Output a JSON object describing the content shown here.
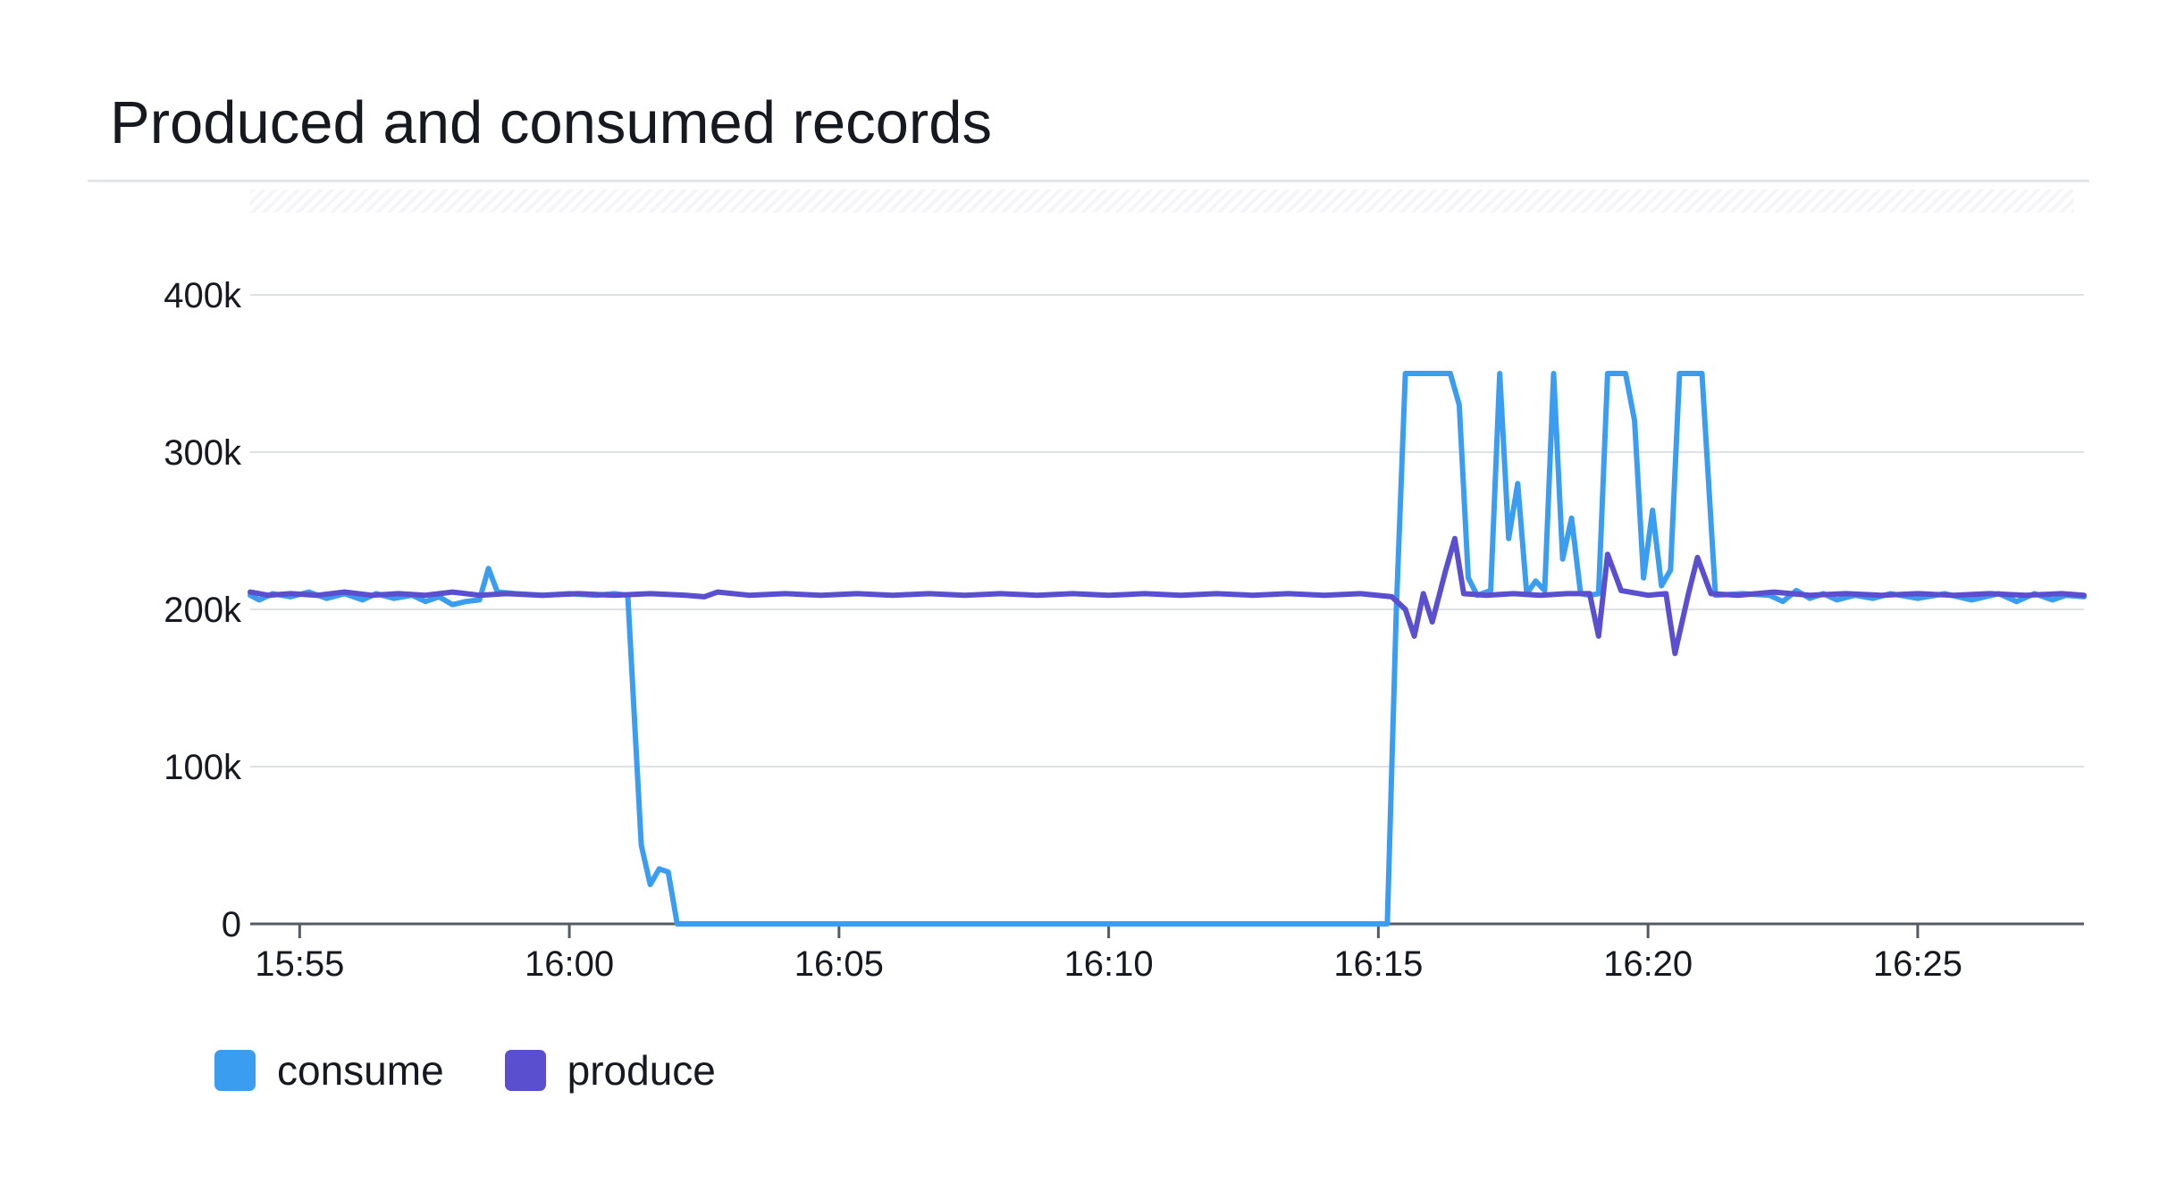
{
  "widget": {
    "title": "Produced and consumed records"
  },
  "chart_data": {
    "type": "line",
    "title": "Produced and consumed records",
    "xlabel": "",
    "ylabel": "",
    "x_range": [
      "15:54:05",
      "16:28:05"
    ],
    "ylim": [
      0,
      400000
    ],
    "grid": true,
    "legend_position": "bottom-left",
    "x_tick_labels": [
      "15:55",
      "16:00",
      "16:05",
      "16:10",
      "16:15",
      "16:20",
      "16:25"
    ],
    "y_tick_labels": [
      "0",
      "100k",
      "200k",
      "300k",
      "400k"
    ],
    "series": [
      {
        "name": "consume",
        "color": "#3a9df0",
        "points": [
          [
            "15:54:05",
            209000
          ],
          [
            "15:54:15",
            206000
          ],
          [
            "15:54:30",
            210000
          ],
          [
            "15:54:50",
            208000
          ],
          [
            "15:55:10",
            211000
          ],
          [
            "15:55:30",
            207000
          ],
          [
            "15:55:50",
            210000
          ],
          [
            "15:56:10",
            206000
          ],
          [
            "15:56:25",
            210000
          ],
          [
            "15:56:45",
            207000
          ],
          [
            "15:57:05",
            209000
          ],
          [
            "15:57:20",
            205000
          ],
          [
            "15:57:35",
            208000
          ],
          [
            "15:57:50",
            203000
          ],
          [
            "15:58:05",
            205000
          ],
          [
            "15:58:20",
            206000
          ],
          [
            "15:58:30",
            226000
          ],
          [
            "15:58:40",
            211000
          ],
          [
            "15:59:00",
            210000
          ],
          [
            "15:59:30",
            209000
          ],
          [
            "16:00:00",
            210000
          ],
          [
            "16:00:30",
            209000
          ],
          [
            "16:00:50",
            210000
          ],
          [
            "16:01:05",
            209000
          ],
          [
            "16:01:20",
            50000
          ],
          [
            "16:01:30",
            25000
          ],
          [
            "16:01:40",
            35000
          ],
          [
            "16:01:50",
            33000
          ],
          [
            "16:02:00",
            0
          ],
          [
            "16:15:10",
            0
          ],
          [
            "16:15:20",
            200000
          ],
          [
            "16:15:30",
            350000
          ],
          [
            "16:16:20",
            350000
          ],
          [
            "16:16:30",
            330000
          ],
          [
            "16:16:40",
            220000
          ],
          [
            "16:16:50",
            209000
          ],
          [
            "16:17:05",
            212000
          ],
          [
            "16:17:15",
            350000
          ],
          [
            "16:17:25",
            245000
          ],
          [
            "16:17:35",
            280000
          ],
          [
            "16:17:45",
            210000
          ],
          [
            "16:17:55",
            218000
          ],
          [
            "16:18:05",
            212000
          ],
          [
            "16:18:15",
            350000
          ],
          [
            "16:18:25",
            232000
          ],
          [
            "16:18:35",
            258000
          ],
          [
            "16:18:45",
            210000
          ],
          [
            "16:18:55",
            209000
          ],
          [
            "16:19:05",
            210000
          ],
          [
            "16:19:15",
            350000
          ],
          [
            "16:19:35",
            350000
          ],
          [
            "16:19:45",
            320000
          ],
          [
            "16:19:55",
            220000
          ],
          [
            "16:20:05",
            263000
          ],
          [
            "16:20:15",
            215000
          ],
          [
            "16:20:25",
            225000
          ],
          [
            "16:20:35",
            350000
          ],
          [
            "16:21:00",
            350000
          ],
          [
            "16:21:15",
            209000
          ],
          [
            "16:21:45",
            210000
          ],
          [
            "16:22:15",
            209000
          ],
          [
            "16:22:30",
            205000
          ],
          [
            "16:22:45",
            212000
          ],
          [
            "16:23:00",
            207000
          ],
          [
            "16:23:15",
            210000
          ],
          [
            "16:23:30",
            206000
          ],
          [
            "16:23:50",
            209000
          ],
          [
            "16:24:10",
            207000
          ],
          [
            "16:24:30",
            210000
          ],
          [
            "16:25:00",
            207000
          ],
          [
            "16:25:30",
            210000
          ],
          [
            "16:26:00",
            206000
          ],
          [
            "16:26:30",
            210000
          ],
          [
            "16:26:50",
            205000
          ],
          [
            "16:27:10",
            210000
          ],
          [
            "16:27:30",
            206000
          ],
          [
            "16:27:45",
            209000
          ],
          [
            "16:28:05",
            208000
          ]
        ]
      },
      {
        "name": "produce",
        "color": "#5a4fcf",
        "points": [
          [
            "15:54:05",
            211000
          ],
          [
            "15:54:25",
            209000
          ],
          [
            "15:54:50",
            210000
          ],
          [
            "15:55:20",
            209000
          ],
          [
            "15:55:50",
            211000
          ],
          [
            "15:56:20",
            209000
          ],
          [
            "15:56:50",
            210000
          ],
          [
            "15:57:20",
            209000
          ],
          [
            "15:57:50",
            211000
          ],
          [
            "15:58:20",
            209000
          ],
          [
            "15:58:50",
            210000
          ],
          [
            "15:59:30",
            209000
          ],
          [
            "16:00:10",
            210000
          ],
          [
            "16:00:50",
            209000
          ],
          [
            "16:01:30",
            210000
          ],
          [
            "16:02:10",
            209000
          ],
          [
            "16:02:30",
            208000
          ],
          [
            "16:02:45",
            211000
          ],
          [
            "16:03:20",
            209000
          ],
          [
            "16:04:00",
            210000
          ],
          [
            "16:04:40",
            209000
          ],
          [
            "16:05:20",
            210000
          ],
          [
            "16:06:00",
            209000
          ],
          [
            "16:06:40",
            210000
          ],
          [
            "16:07:20",
            209000
          ],
          [
            "16:08:00",
            210000
          ],
          [
            "16:08:40",
            209000
          ],
          [
            "16:09:20",
            210000
          ],
          [
            "16:10:00",
            209000
          ],
          [
            "16:10:40",
            210000
          ],
          [
            "16:11:20",
            209000
          ],
          [
            "16:12:00",
            210000
          ],
          [
            "16:12:40",
            209000
          ],
          [
            "16:13:20",
            210000
          ],
          [
            "16:14:00",
            209000
          ],
          [
            "16:14:40",
            210000
          ],
          [
            "16:15:15",
            208000
          ],
          [
            "16:15:30",
            200000
          ],
          [
            "16:15:40",
            183000
          ],
          [
            "16:15:50",
            210000
          ],
          [
            "16:16:00",
            192000
          ],
          [
            "16:16:15",
            225000
          ],
          [
            "16:16:25",
            245000
          ],
          [
            "16:16:35",
            210000
          ],
          [
            "16:17:00",
            209000
          ],
          [
            "16:17:30",
            210000
          ],
          [
            "16:18:00",
            209000
          ],
          [
            "16:18:30",
            210000
          ],
          [
            "16:18:55",
            210000
          ],
          [
            "16:19:05",
            183000
          ],
          [
            "16:19:15",
            235000
          ],
          [
            "16:19:30",
            212000
          ],
          [
            "16:20:00",
            209000
          ],
          [
            "16:20:20",
            210000
          ],
          [
            "16:20:30",
            172000
          ],
          [
            "16:20:45",
            210000
          ],
          [
            "16:20:55",
            233000
          ],
          [
            "16:21:10",
            210000
          ],
          [
            "16:21:40",
            209000
          ],
          [
            "16:22:20",
            211000
          ],
          [
            "16:23:00",
            209000
          ],
          [
            "16:23:40",
            210000
          ],
          [
            "16:24:20",
            209000
          ],
          [
            "16:25:00",
            210000
          ],
          [
            "16:25:40",
            209000
          ],
          [
            "16:26:20",
            210000
          ],
          [
            "16:27:00",
            209000
          ],
          [
            "16:27:40",
            210000
          ],
          [
            "16:28:05",
            209000
          ]
        ]
      }
    ]
  }
}
